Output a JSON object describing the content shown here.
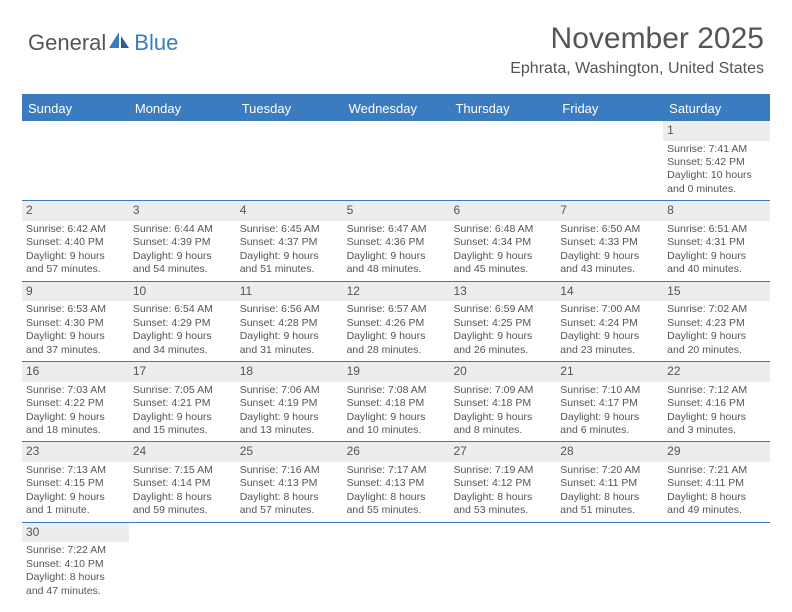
{
  "logo": {
    "part1": "General",
    "part2": "Blue"
  },
  "title": "November 2025",
  "location": "Ephrata, Washington, United States",
  "accent_color": "#3b7bbf",
  "daynum_bg": "#eceded",
  "text_color": "#555555",
  "day_headers": [
    "Sunday",
    "Monday",
    "Tuesday",
    "Wednesday",
    "Thursday",
    "Friday",
    "Saturday"
  ],
  "weeks": [
    [
      {
        "n": "",
        "sr": "",
        "ss": "",
        "dl": ""
      },
      {
        "n": "",
        "sr": "",
        "ss": "",
        "dl": ""
      },
      {
        "n": "",
        "sr": "",
        "ss": "",
        "dl": ""
      },
      {
        "n": "",
        "sr": "",
        "ss": "",
        "dl": ""
      },
      {
        "n": "",
        "sr": "",
        "ss": "",
        "dl": ""
      },
      {
        "n": "",
        "sr": "",
        "ss": "",
        "dl": ""
      },
      {
        "n": "1",
        "sr": "Sunrise: 7:41 AM",
        "ss": "Sunset: 5:42 PM",
        "dl": "Daylight: 10 hours and 0 minutes."
      }
    ],
    [
      {
        "n": "2",
        "sr": "Sunrise: 6:42 AM",
        "ss": "Sunset: 4:40 PM",
        "dl": "Daylight: 9 hours and 57 minutes."
      },
      {
        "n": "3",
        "sr": "Sunrise: 6:44 AM",
        "ss": "Sunset: 4:39 PM",
        "dl": "Daylight: 9 hours and 54 minutes."
      },
      {
        "n": "4",
        "sr": "Sunrise: 6:45 AM",
        "ss": "Sunset: 4:37 PM",
        "dl": "Daylight: 9 hours and 51 minutes."
      },
      {
        "n": "5",
        "sr": "Sunrise: 6:47 AM",
        "ss": "Sunset: 4:36 PM",
        "dl": "Daylight: 9 hours and 48 minutes."
      },
      {
        "n": "6",
        "sr": "Sunrise: 6:48 AM",
        "ss": "Sunset: 4:34 PM",
        "dl": "Daylight: 9 hours and 45 minutes."
      },
      {
        "n": "7",
        "sr": "Sunrise: 6:50 AM",
        "ss": "Sunset: 4:33 PM",
        "dl": "Daylight: 9 hours and 43 minutes."
      },
      {
        "n": "8",
        "sr": "Sunrise: 6:51 AM",
        "ss": "Sunset: 4:31 PM",
        "dl": "Daylight: 9 hours and 40 minutes."
      }
    ],
    [
      {
        "n": "9",
        "sr": "Sunrise: 6:53 AM",
        "ss": "Sunset: 4:30 PM",
        "dl": "Daylight: 9 hours and 37 minutes."
      },
      {
        "n": "10",
        "sr": "Sunrise: 6:54 AM",
        "ss": "Sunset: 4:29 PM",
        "dl": "Daylight: 9 hours and 34 minutes."
      },
      {
        "n": "11",
        "sr": "Sunrise: 6:56 AM",
        "ss": "Sunset: 4:28 PM",
        "dl": "Daylight: 9 hours and 31 minutes."
      },
      {
        "n": "12",
        "sr": "Sunrise: 6:57 AM",
        "ss": "Sunset: 4:26 PM",
        "dl": "Daylight: 9 hours and 28 minutes."
      },
      {
        "n": "13",
        "sr": "Sunrise: 6:59 AM",
        "ss": "Sunset: 4:25 PM",
        "dl": "Daylight: 9 hours and 26 minutes."
      },
      {
        "n": "14",
        "sr": "Sunrise: 7:00 AM",
        "ss": "Sunset: 4:24 PM",
        "dl": "Daylight: 9 hours and 23 minutes."
      },
      {
        "n": "15",
        "sr": "Sunrise: 7:02 AM",
        "ss": "Sunset: 4:23 PM",
        "dl": "Daylight: 9 hours and 20 minutes."
      }
    ],
    [
      {
        "n": "16",
        "sr": "Sunrise: 7:03 AM",
        "ss": "Sunset: 4:22 PM",
        "dl": "Daylight: 9 hours and 18 minutes."
      },
      {
        "n": "17",
        "sr": "Sunrise: 7:05 AM",
        "ss": "Sunset: 4:21 PM",
        "dl": "Daylight: 9 hours and 15 minutes."
      },
      {
        "n": "18",
        "sr": "Sunrise: 7:06 AM",
        "ss": "Sunset: 4:19 PM",
        "dl": "Daylight: 9 hours and 13 minutes."
      },
      {
        "n": "19",
        "sr": "Sunrise: 7:08 AM",
        "ss": "Sunset: 4:18 PM",
        "dl": "Daylight: 9 hours and 10 minutes."
      },
      {
        "n": "20",
        "sr": "Sunrise: 7:09 AM",
        "ss": "Sunset: 4:18 PM",
        "dl": "Daylight: 9 hours and 8 minutes."
      },
      {
        "n": "21",
        "sr": "Sunrise: 7:10 AM",
        "ss": "Sunset: 4:17 PM",
        "dl": "Daylight: 9 hours and 6 minutes."
      },
      {
        "n": "22",
        "sr": "Sunrise: 7:12 AM",
        "ss": "Sunset: 4:16 PM",
        "dl": "Daylight: 9 hours and 3 minutes."
      }
    ],
    [
      {
        "n": "23",
        "sr": "Sunrise: 7:13 AM",
        "ss": "Sunset: 4:15 PM",
        "dl": "Daylight: 9 hours and 1 minute."
      },
      {
        "n": "24",
        "sr": "Sunrise: 7:15 AM",
        "ss": "Sunset: 4:14 PM",
        "dl": "Daylight: 8 hours and 59 minutes."
      },
      {
        "n": "25",
        "sr": "Sunrise: 7:16 AM",
        "ss": "Sunset: 4:13 PM",
        "dl": "Daylight: 8 hours and 57 minutes."
      },
      {
        "n": "26",
        "sr": "Sunrise: 7:17 AM",
        "ss": "Sunset: 4:13 PM",
        "dl": "Daylight: 8 hours and 55 minutes."
      },
      {
        "n": "27",
        "sr": "Sunrise: 7:19 AM",
        "ss": "Sunset: 4:12 PM",
        "dl": "Daylight: 8 hours and 53 minutes."
      },
      {
        "n": "28",
        "sr": "Sunrise: 7:20 AM",
        "ss": "Sunset: 4:11 PM",
        "dl": "Daylight: 8 hours and 51 minutes."
      },
      {
        "n": "29",
        "sr": "Sunrise: 7:21 AM",
        "ss": "Sunset: 4:11 PM",
        "dl": "Daylight: 8 hours and 49 minutes."
      }
    ],
    [
      {
        "n": "30",
        "sr": "Sunrise: 7:22 AM",
        "ss": "Sunset: 4:10 PM",
        "dl": "Daylight: 8 hours and 47 minutes."
      },
      {
        "n": "",
        "sr": "",
        "ss": "",
        "dl": ""
      },
      {
        "n": "",
        "sr": "",
        "ss": "",
        "dl": ""
      },
      {
        "n": "",
        "sr": "",
        "ss": "",
        "dl": ""
      },
      {
        "n": "",
        "sr": "",
        "ss": "",
        "dl": ""
      },
      {
        "n": "",
        "sr": "",
        "ss": "",
        "dl": ""
      },
      {
        "n": "",
        "sr": "",
        "ss": "",
        "dl": ""
      }
    ]
  ]
}
